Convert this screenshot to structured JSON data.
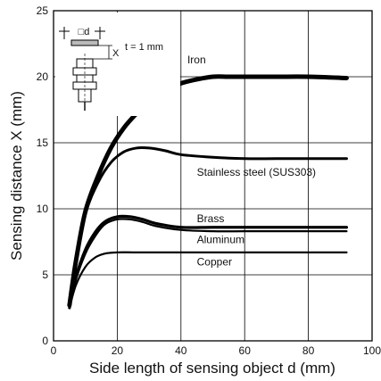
{
  "chart_data": {
    "type": "line",
    "title": "",
    "xlabel": "Side length of sensing object d (mm)",
    "ylabel": "Sensing distance X (mm)",
    "xlim": [
      0,
      100
    ],
    "ylim": [
      0,
      25
    ],
    "xticks": [
      "0",
      "20",
      "40",
      "60",
      "80",
      "100"
    ],
    "yticks": [
      "0",
      "5",
      "10",
      "15",
      "20",
      "25"
    ],
    "grid": true,
    "inset": {
      "d_label": "□d",
      "x_label": "X",
      "thickness_label": "t = 1 mm"
    },
    "series": [
      {
        "name": "Iron",
        "x": [
          5,
          7,
          10,
          14,
          18,
          22,
          26,
          30,
          35,
          40,
          45,
          50,
          55,
          60,
          70,
          80,
          92
        ],
        "y": [
          2.7,
          6.0,
          9.8,
          12.5,
          14.6,
          16.1,
          17.2,
          18.1,
          19.0,
          19.5,
          19.8,
          20.0,
          20.0,
          20.0,
          20.0,
          20.0,
          19.9
        ]
      },
      {
        "name": "Stainless steel (SUS303)",
        "x": [
          5,
          7,
          10,
          14,
          18,
          22,
          26,
          30,
          35,
          40,
          50,
          60,
          70,
          80,
          92
        ],
        "y": [
          2.6,
          5.8,
          9.6,
          12.0,
          13.5,
          14.3,
          14.6,
          14.6,
          14.4,
          14.1,
          13.9,
          13.8,
          13.8,
          13.8,
          13.8
        ]
      },
      {
        "name": "Brass",
        "x": [
          5,
          7,
          10,
          13,
          16,
          20,
          24,
          28,
          32,
          40,
          50,
          60,
          70,
          80,
          92
        ],
        "y": [
          2.5,
          4.8,
          6.9,
          8.2,
          9.0,
          9.4,
          9.4,
          9.2,
          8.9,
          8.6,
          8.6,
          8.6,
          8.6,
          8.6,
          8.6
        ]
      },
      {
        "name": "Aluminum",
        "x": [
          5,
          7,
          10,
          13,
          16,
          20,
          24,
          28,
          32,
          40,
          50,
          60,
          70,
          80,
          92
        ],
        "y": [
          2.5,
          4.6,
          6.6,
          7.9,
          8.8,
          9.2,
          9.2,
          9.0,
          8.7,
          8.4,
          8.3,
          8.3,
          8.3,
          8.3,
          8.3
        ]
      },
      {
        "name": "Copper",
        "x": [
          5,
          7,
          10,
          13,
          16,
          20,
          25,
          30,
          40,
          50,
          60,
          70,
          80,
          92
        ],
        "y": [
          2.5,
          4.2,
          5.6,
          6.3,
          6.6,
          6.7,
          6.7,
          6.7,
          6.7,
          6.7,
          6.7,
          6.7,
          6.7,
          6.7
        ]
      }
    ]
  }
}
